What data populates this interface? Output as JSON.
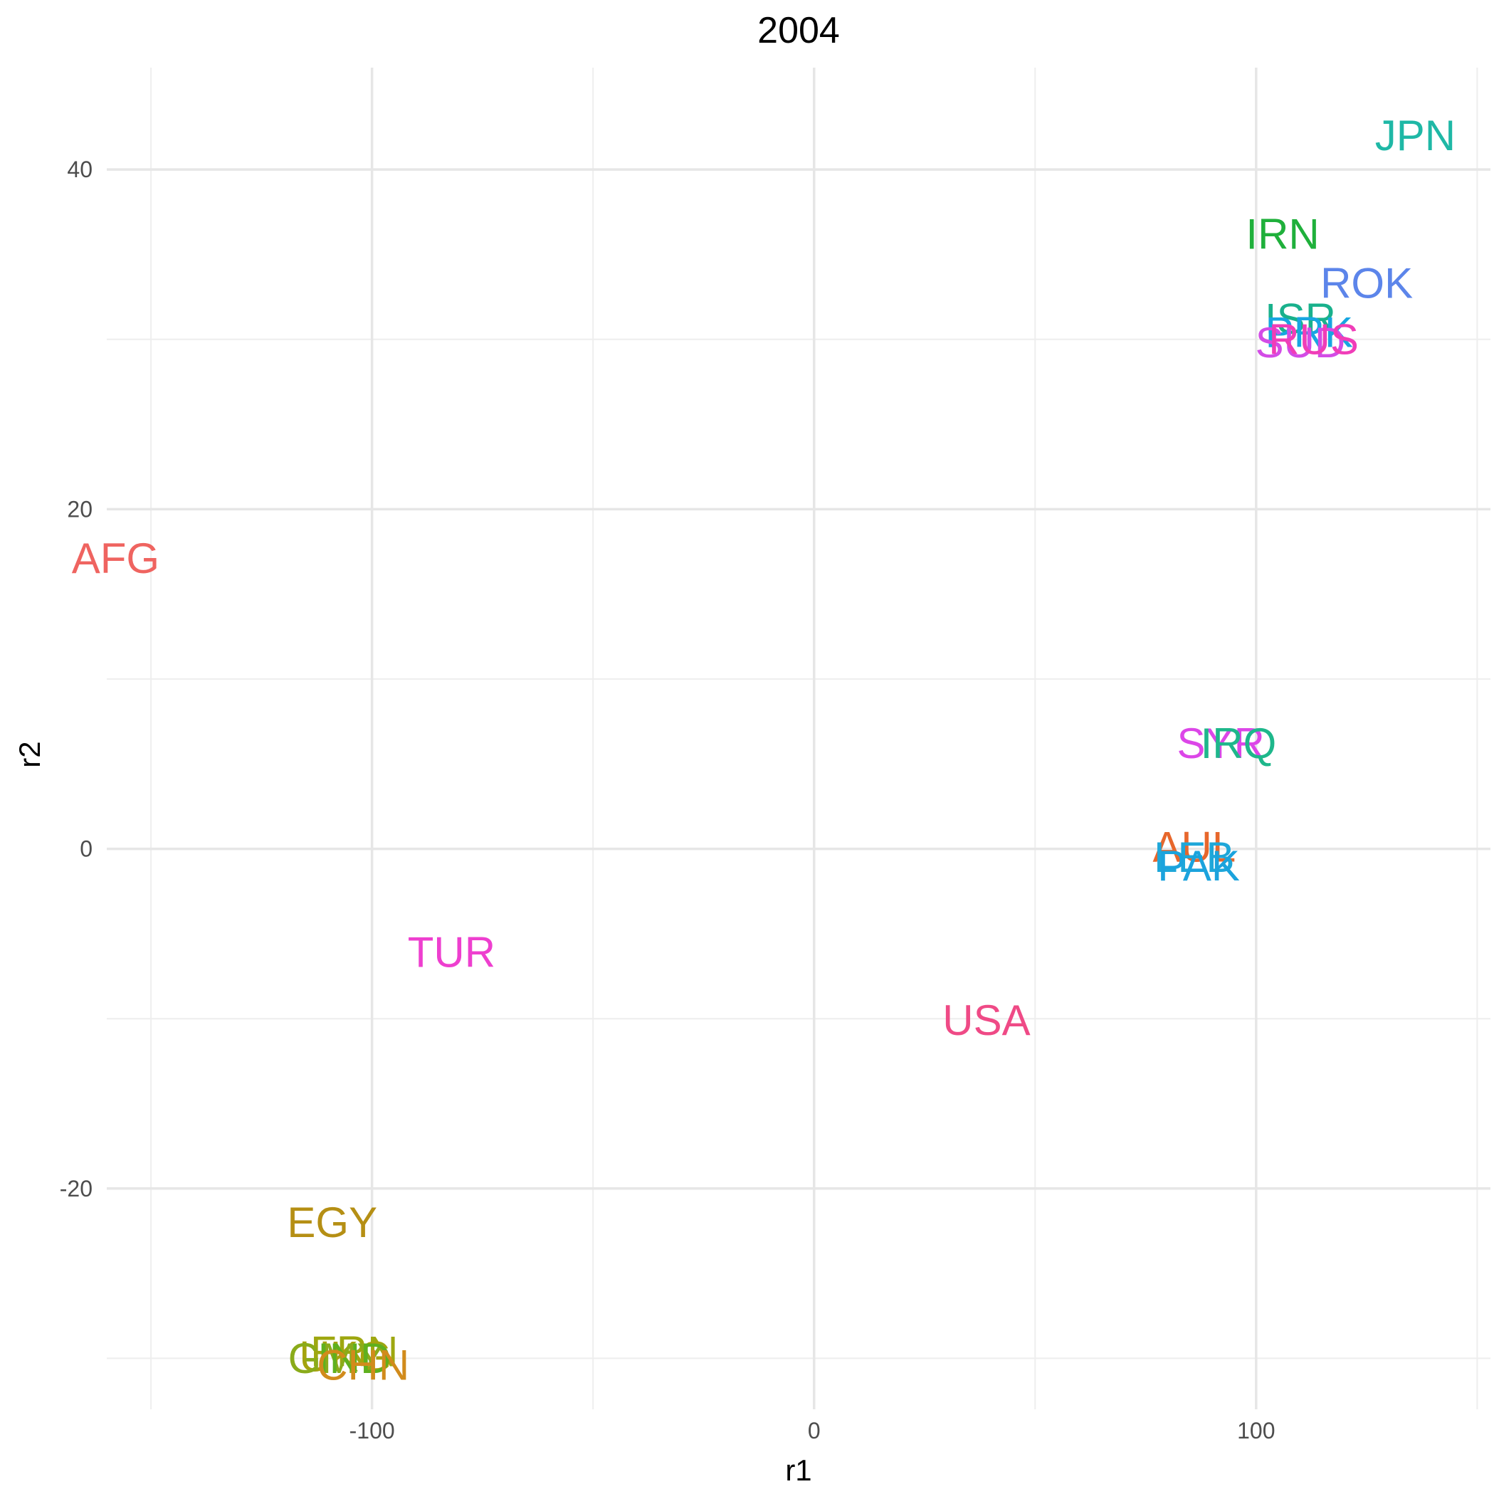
{
  "chart_data": {
    "type": "scatter",
    "title": "2004",
    "xlabel": "r1",
    "ylabel": "r2",
    "xlim": [
      -160,
      153
    ],
    "ylim": [
      -33,
      46
    ],
    "x_ticks": [
      -100,
      0,
      100
    ],
    "x_tick_labels": [
      "-100",
      "0",
      "100"
    ],
    "y_ticks": [
      -20,
      0,
      20,
      40
    ],
    "y_tick_labels": [
      "-20",
      "0",
      "20",
      "40"
    ],
    "grid": true,
    "legend": "none",
    "points": [
      {
        "label": "JPN",
        "x": 136,
        "y": 42,
        "color": "#1fb8a6"
      },
      {
        "label": "IRN",
        "x": 106,
        "y": 36.2,
        "color": "#1fb03b"
      },
      {
        "label": "ROK",
        "x": 125,
        "y": 33.3,
        "color": "#5c85ea"
      },
      {
        "label": "ISR",
        "x": 110,
        "y": 31.2,
        "color": "#19b18c"
      },
      {
        "label": "PRK",
        "x": 112,
        "y": 30.4,
        "color": "#17a6e1"
      },
      {
        "label": "SUD",
        "x": 110,
        "y": 29.8,
        "color": "#d34ce6"
      },
      {
        "label": "RUS",
        "x": 113,
        "y": 30.0,
        "color": "#f03db8"
      },
      {
        "label": "SYR",
        "x": 92,
        "y": 6.2,
        "color": "#dc46e8"
      },
      {
        "label": "IRQ",
        "x": 96,
        "y": 6.2,
        "color": "#1eb78b"
      },
      {
        "label": "AUL",
        "x": 86,
        "y": 0.1,
        "color": "#e7672c"
      },
      {
        "label": "LEB",
        "x": 86,
        "y": -0.5,
        "color": "#1fa7d9"
      },
      {
        "label": "PAK",
        "x": 87,
        "y": -1.0,
        "color": "#1ba3dd"
      },
      {
        "label": "AFG",
        "x": -158,
        "y": 17.1,
        "color": "#ef6460"
      },
      {
        "label": "TUR",
        "x": -82,
        "y": -6.1,
        "color": "#ee3fcf"
      },
      {
        "label": "USA",
        "x": 39,
        "y": -10.1,
        "color": "#ef4a86"
      },
      {
        "label": "EGY",
        "x": -109,
        "y": -22.0,
        "color": "#b58f14"
      },
      {
        "label": "FRN",
        "x": -104,
        "y": -29.6,
        "color": "#9ea710"
      },
      {
        "label": "UKG",
        "x": -106,
        "y": -29.9,
        "color": "#a4a30d"
      },
      {
        "label": "GMY",
        "x": -108,
        "y": -30.0,
        "color": "#8aab1a"
      },
      {
        "label": "IND",
        "x": -104,
        "y": -30.0,
        "color": "#5fb01e"
      },
      {
        "label": "CHN",
        "x": -102,
        "y": -30.4,
        "color": "#d18b1c"
      }
    ]
  }
}
